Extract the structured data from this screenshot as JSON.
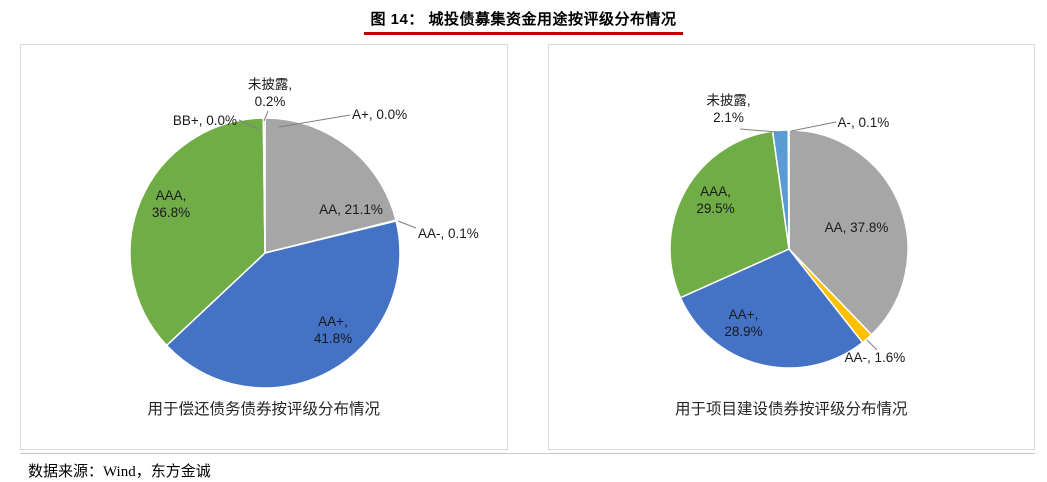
{
  "page": {
    "title": "图 14：  城投债募集资金用途按评级分布情况",
    "source": "数据来源：Wind，东方金诚"
  },
  "chart_data": [
    {
      "type": "pie",
      "caption": "用于偿还债务债券按评级分布情况",
      "start_angle_deg": 0,
      "direction": "clockwise",
      "unit": "%",
      "slices": [
        {
          "label": "AA",
          "value": 21.1,
          "color": "#A6A6A6",
          "display": "AA, 21.1%"
        },
        {
          "label": "AA-",
          "value": 0.1,
          "color": "#FFC000",
          "display": "AA-, 0.1%"
        },
        {
          "label": "AA+",
          "value": 41.8,
          "color": "#4472C4",
          "display": "AA+,\n41.8%"
        },
        {
          "label": "AAA",
          "value": 36.8,
          "color": "#70AD47",
          "display": "AAA,\n36.8%"
        },
        {
          "label": "BB+",
          "value": 0.0,
          "color": "#264478",
          "display": "BB+, 0.0%"
        },
        {
          "label": "未披露",
          "value": 0.2,
          "color": "#5B9BD5",
          "display": "未披露,\n0.2%"
        },
        {
          "label": "A+",
          "value": 0.0,
          "color": "#ED7D31",
          "display": "A+, 0.0%"
        }
      ]
    },
    {
      "type": "pie",
      "caption": "用于项目建设债券按评级分布情况",
      "start_angle_deg": 0,
      "direction": "clockwise",
      "unit": "%",
      "slices": [
        {
          "label": "AA",
          "value": 37.8,
          "color": "#A6A6A6",
          "display": "AA, 37.8%"
        },
        {
          "label": "AA-",
          "value": 1.6,
          "color": "#FFC000",
          "display": "AA-, 1.6%"
        },
        {
          "label": "AA+",
          "value": 28.9,
          "color": "#4472C4",
          "display": "AA+,\n28.9%"
        },
        {
          "label": "AAA",
          "value": 29.5,
          "color": "#70AD47",
          "display": "AAA,\n29.5%"
        },
        {
          "label": "未披露",
          "value": 2.1,
          "color": "#5B9BD5",
          "display": "未披露,\n2.1%"
        },
        {
          "label": "A-",
          "value": 0.1,
          "color": "#ED7D31",
          "display": "A-, 0.1%"
        }
      ]
    }
  ]
}
